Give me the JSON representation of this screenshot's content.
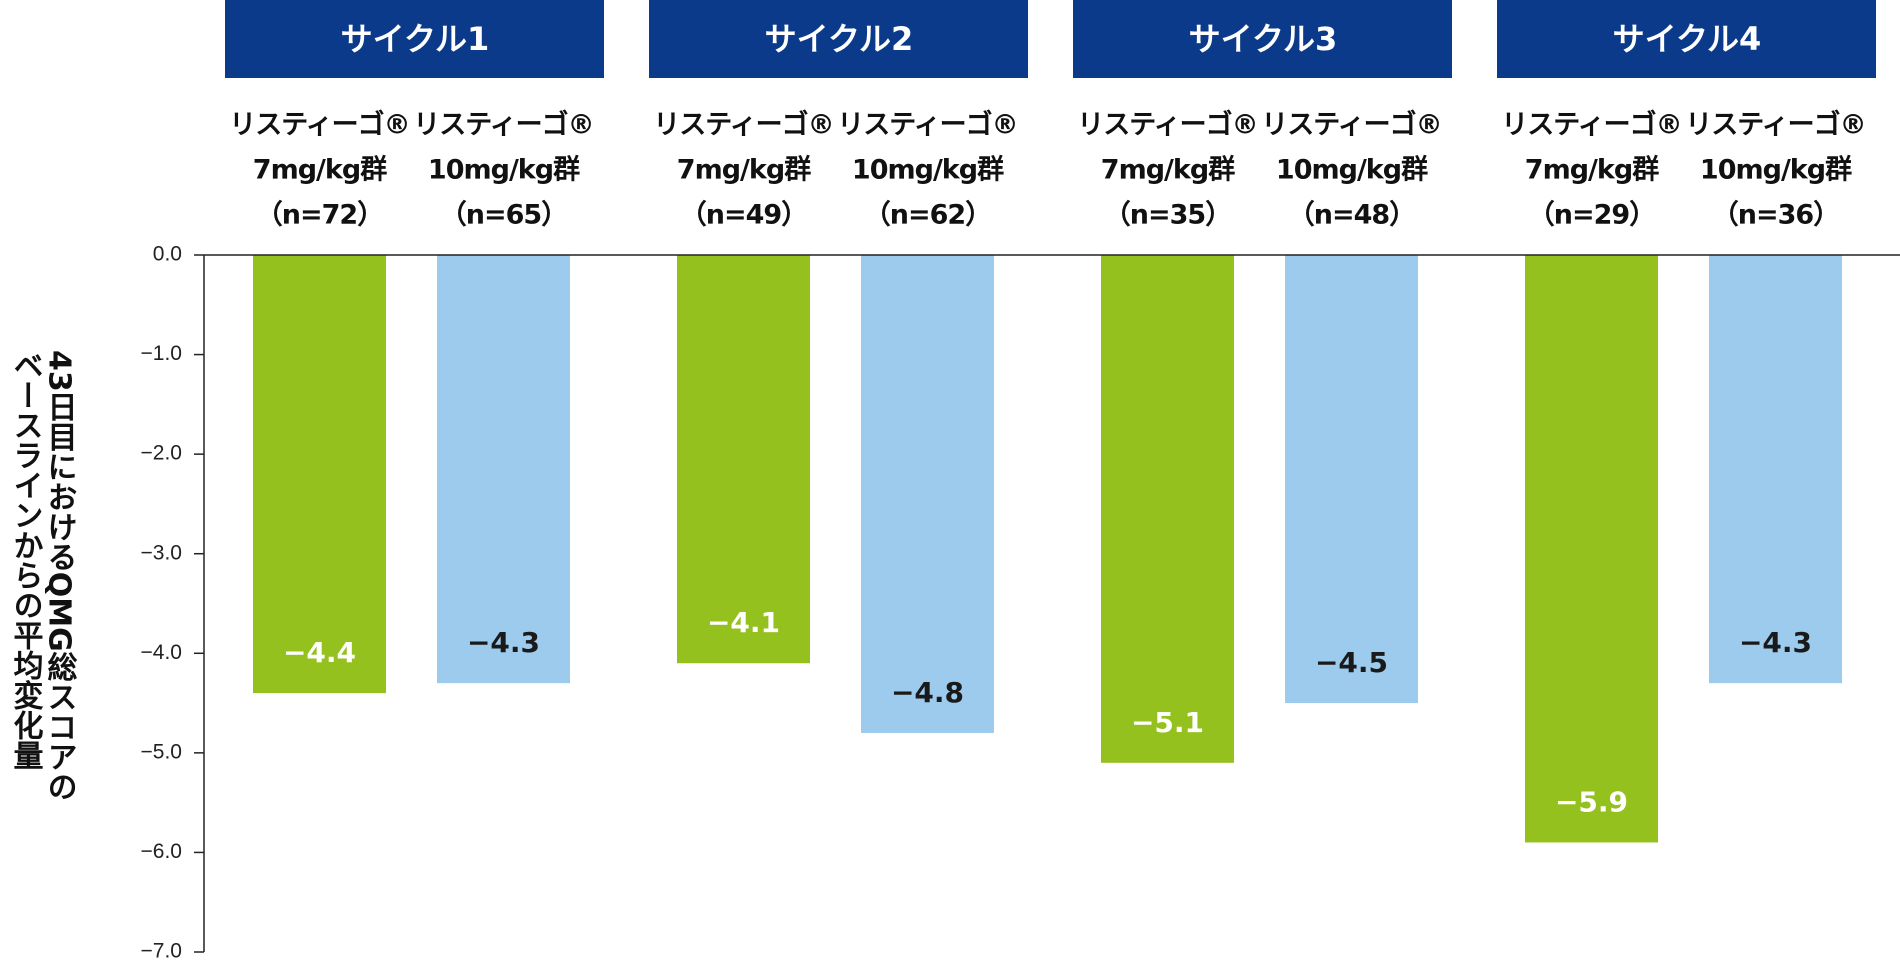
{
  "chart_data": {
    "type": "bar",
    "y_label": [
      "43日目におけるQMG総スコアの",
      "ベースラインからの平均変化量"
    ],
    "categories": [
      "サイクル1",
      "サイクル2",
      "サイクル3",
      "サイクル4"
    ],
    "series": [
      {
        "color": "#95c11f",
        "label_color": "#ffffff",
        "values": [
          -4.4,
          -4.1,
          -5.1,
          -5.9
        ],
        "value_labels": [
          "−4.4",
          "−4.1",
          "−5.1",
          "−5.9"
        ],
        "labels": [
          [
            "リスティーゴ®",
            "7mg/kg群",
            "（n=72）"
          ],
          [
            "リスティーゴ®",
            "7mg/kg群",
            "（n=49）"
          ],
          [
            "リスティーゴ®",
            "7mg/kg群",
            "（n=35）"
          ],
          [
            "リスティーゴ®",
            "7mg/kg群",
            "（n=29）"
          ]
        ]
      },
      {
        "color": "#9dcbee",
        "label_color": "#1a1a1a",
        "values": [
          -4.3,
          -4.8,
          -4.5,
          -4.3
        ],
        "value_labels": [
          "−4.3",
          "−4.8",
          "−4.5",
          "−4.3"
        ],
        "labels": [
          [
            "リスティーゴ®",
            "10mg/kg群",
            "（n=65）"
          ],
          [
            "リスティーゴ®",
            "10mg/kg群",
            "（n=62）"
          ],
          [
            "リスティーゴ®",
            "10mg/kg群",
            "（n=48）"
          ],
          [
            "リスティーゴ®",
            "10mg/kg群",
            "（n=36）"
          ]
        ]
      }
    ],
    "header_color": "#0b3a8a",
    "ylim": [
      0,
      -7
    ],
    "yticks": [
      {
        "value": 0,
        "label": "0.0"
      },
      {
        "value": -1,
        "label": "−1.0"
      },
      {
        "value": -2,
        "label": "−2.0"
      },
      {
        "value": -3,
        "label": "−3.0"
      },
      {
        "value": -4,
        "label": "−4.0"
      },
      {
        "value": -5,
        "label": "−5.0"
      },
      {
        "value": -6,
        "label": "−6.0"
      },
      {
        "value": -7,
        "label": "−7.0"
      }
    ]
  }
}
